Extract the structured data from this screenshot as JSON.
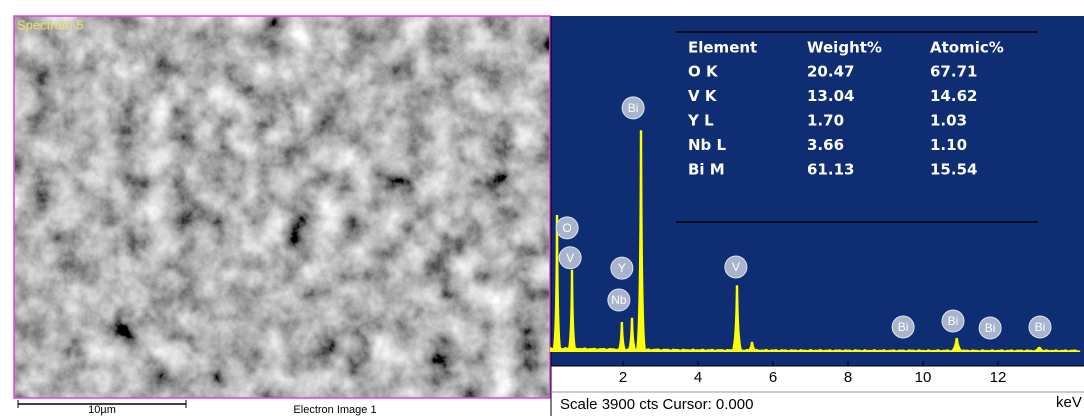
{
  "image": {
    "label": "Spectrum 5",
    "scale_bar": "10µm",
    "caption": "Electron Image 1"
  },
  "table": {
    "header": [
      "Element",
      "Weight%",
      "Atomic%"
    ],
    "rows": [
      [
        "O K",
        "20.47",
        "67.71"
      ],
      [
        "V K",
        "13.04",
        "14.62"
      ],
      [
        "Y L",
        "1.70",
        "1.03"
      ],
      [
        "Nb L",
        "3.66",
        "1.10"
      ],
      [
        "Bi M",
        "61.13",
        "15.54"
      ]
    ]
  },
  "spectrum": {
    "xlim": [
      0,
      14.2
    ],
    "ylim": [
      0,
      3900
    ],
    "xticks": [
      2,
      4,
      6,
      8,
      10,
      12
    ],
    "x_unit": "keV",
    "color": "#ffff00",
    "peaks": [
      {
        "x": 0.24,
        "counts": 1600
      },
      {
        "x": 0.64,
        "counts": 960
      },
      {
        "x": 1.97,
        "counts": 350
      },
      {
        "x": 2.24,
        "counts": 400
      },
      {
        "x": 2.48,
        "counts": 2590
      },
      {
        "x": 5.04,
        "counts": 780
      },
      {
        "x": 5.44,
        "counts": 120
      },
      {
        "x": 10.9,
        "counts": 165
      },
      {
        "x": 13.1,
        "counts": 60
      }
    ],
    "labels": [
      {
        "text": "O",
        "x": 0.51,
        "counts": 1450
      },
      {
        "text": "V",
        "x": 0.59,
        "counts": 1100
      },
      {
        "text": "Bi",
        "x": 2.27,
        "counts": 2850
      },
      {
        "text": "Y",
        "x": 1.97,
        "counts": 980
      },
      {
        "text": "Nb",
        "x": 1.89,
        "counts": 607
      },
      {
        "text": "V",
        "x": 5.01,
        "counts": 993
      },
      {
        "text": "Bi",
        "x": 9.47,
        "counts": 292
      },
      {
        "text": "Bi",
        "x": 10.8,
        "counts": 362
      },
      {
        "text": "Bi",
        "x": 11.79,
        "counts": 280
      },
      {
        "text": "Bi",
        "x": 13.12,
        "counts": 292
      }
    ],
    "status": "Scale 3900 cts Cursor: 0.000"
  }
}
